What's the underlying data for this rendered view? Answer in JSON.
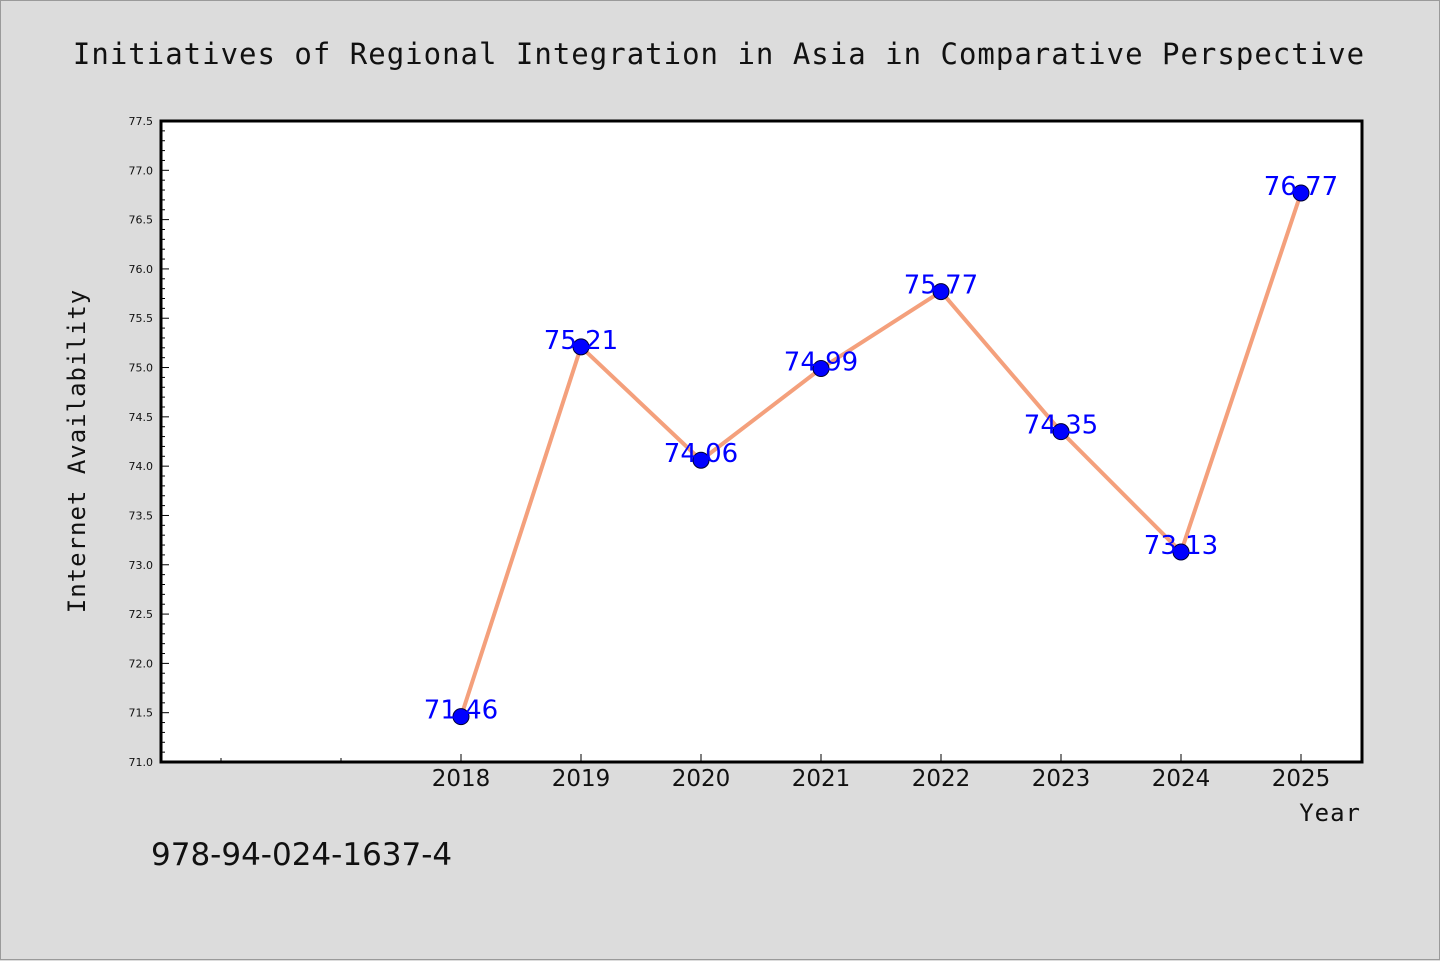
{
  "chart_data": {
    "type": "line",
    "title": "Initiatives of Regional Integration in Asia in Comparative Perspective",
    "xlabel": "Year",
    "ylabel": "Internet Availability",
    "categories": [
      "2018",
      "2019",
      "2020",
      "2021",
      "2022",
      "2023",
      "2024",
      "2025"
    ],
    "series": [
      {
        "values": [
          71.46,
          75.21,
          74.06,
          74.99,
          75.77,
          74.35,
          73.13,
          76.77
        ],
        "labels": [
          "71.46",
          "75.21",
          "74.06",
          "74.99",
          "75.77",
          "74.35",
          "73.13",
          "76.77"
        ]
      }
    ],
    "ylim": [
      71.0,
      77.5
    ],
    "yticks": [
      "71.0",
      "71.5",
      "72.0",
      "72.5",
      "73.0",
      "73.5",
      "74.0",
      "74.5",
      "75.0",
      "75.5",
      "76.0",
      "76.5",
      "77.0",
      "77.5"
    ],
    "grid": false,
    "line_color": "#f4a07c",
    "marker_color": "#0000ff",
    "label_color": "#0000ff",
    "background_color": "#dcdcdc",
    "plot_background": "#ffffff"
  },
  "footer": {
    "code": "978-94-024-1637-4"
  }
}
